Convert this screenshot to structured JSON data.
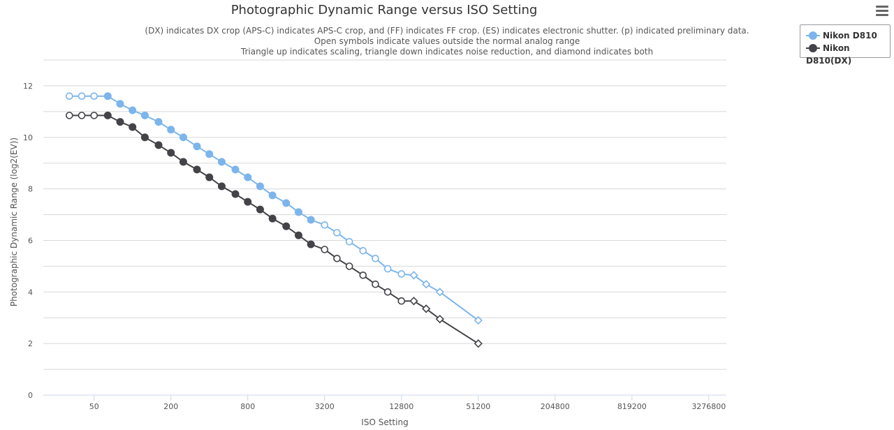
{
  "title": "Photographic Dynamic Range versus ISO Setting",
  "subtitle_lines": [
    "(DX) indicates DX crop (APS-C) indicates APS-C crop, and (FF) indicates FF crop. (ES) indicates electronic shutter. (p) indicated preliminary data.",
    "Open symbols indicate values outside the normal analog range",
    "Triangle up indicates scaling, triangle down indicates noise reduction, and diamond indicates both"
  ],
  "menu_icon": "hamburger-menu-icon",
  "colors": {
    "series1": "#7cb5ec",
    "series2": "#434348",
    "grid": "#d8d8d8",
    "axis_text": "#555555"
  },
  "legend": [
    {
      "label": "Nikon D810",
      "color": "#7cb5ec"
    },
    {
      "label": "Nikon D810(DX)",
      "color": "#434348"
    }
  ],
  "chart_data": {
    "type": "line",
    "xlabel": "ISO Setting",
    "ylabel": "Photographic Dynamic Range (log2(EV))",
    "x_scale": "log2",
    "xlim": [
      20,
      4500000
    ],
    "ylim": [
      0,
      13
    ],
    "x_tick_labels": [
      "50",
      "200",
      "800",
      "3200",
      "12800",
      "51200",
      "204800",
      "819200",
      "3276800"
    ],
    "y_tick_labels": [
      "0",
      "2",
      "4",
      "6",
      "8",
      "10",
      "12"
    ],
    "grid": true,
    "legend_position": "top-right",
    "series": [
      {
        "name": "Nikon D810",
        "points": [
          {
            "x": 32,
            "y": 11.6,
            "marker": "open-circle"
          },
          {
            "x": 40,
            "y": 11.6,
            "marker": "open-circle"
          },
          {
            "x": 50,
            "y": 11.6,
            "marker": "open-circle"
          },
          {
            "x": 64,
            "y": 11.6,
            "marker": "circle"
          },
          {
            "x": 80,
            "y": 11.3,
            "marker": "circle"
          },
          {
            "x": 100,
            "y": 11.05,
            "marker": "circle"
          },
          {
            "x": 125,
            "y": 10.85,
            "marker": "circle"
          },
          {
            "x": 160,
            "y": 10.6,
            "marker": "circle"
          },
          {
            "x": 200,
            "y": 10.3,
            "marker": "circle"
          },
          {
            "x": 250,
            "y": 10.0,
            "marker": "circle"
          },
          {
            "x": 320,
            "y": 9.65,
            "marker": "circle"
          },
          {
            "x": 400,
            "y": 9.35,
            "marker": "circle"
          },
          {
            "x": 500,
            "y": 9.05,
            "marker": "circle"
          },
          {
            "x": 640,
            "y": 8.75,
            "marker": "circle"
          },
          {
            "x": 800,
            "y": 8.45,
            "marker": "circle"
          },
          {
            "x": 1000,
            "y": 8.1,
            "marker": "circle"
          },
          {
            "x": 1250,
            "y": 7.75,
            "marker": "circle"
          },
          {
            "x": 1600,
            "y": 7.45,
            "marker": "circle"
          },
          {
            "x": 2000,
            "y": 7.1,
            "marker": "circle"
          },
          {
            "x": 2500,
            "y": 6.8,
            "marker": "circle"
          },
          {
            "x": 3200,
            "y": 6.6,
            "marker": "open-circle"
          },
          {
            "x": 4000,
            "y": 6.3,
            "marker": "open-circle"
          },
          {
            "x": 5000,
            "y": 5.95,
            "marker": "open-circle"
          },
          {
            "x": 6400,
            "y": 5.6,
            "marker": "open-circle"
          },
          {
            "x": 8000,
            "y": 5.3,
            "marker": "open-circle"
          },
          {
            "x": 10000,
            "y": 4.9,
            "marker": "open-circle"
          },
          {
            "x": 12800,
            "y": 4.7,
            "marker": "open-circle"
          },
          {
            "x": 16000,
            "y": 4.65,
            "marker": "open-diamond"
          },
          {
            "x": 20000,
            "y": 4.3,
            "marker": "open-diamond"
          },
          {
            "x": 25600,
            "y": 4.0,
            "marker": "open-diamond"
          },
          {
            "x": 51200,
            "y": 2.9,
            "marker": "open-diamond"
          }
        ]
      },
      {
        "name": "Nikon D810(DX)",
        "points": [
          {
            "x": 32,
            "y": 10.85,
            "marker": "open-circle"
          },
          {
            "x": 40,
            "y": 10.85,
            "marker": "open-circle"
          },
          {
            "x": 50,
            "y": 10.85,
            "marker": "open-circle"
          },
          {
            "x": 64,
            "y": 10.85,
            "marker": "circle"
          },
          {
            "x": 80,
            "y": 10.6,
            "marker": "circle"
          },
          {
            "x": 100,
            "y": 10.4,
            "marker": "circle"
          },
          {
            "x": 125,
            "y": 10.0,
            "marker": "circle"
          },
          {
            "x": 160,
            "y": 9.7,
            "marker": "circle"
          },
          {
            "x": 200,
            "y": 9.4,
            "marker": "circle"
          },
          {
            "x": 250,
            "y": 9.05,
            "marker": "circle"
          },
          {
            "x": 320,
            "y": 8.75,
            "marker": "circle"
          },
          {
            "x": 400,
            "y": 8.45,
            "marker": "circle"
          },
          {
            "x": 500,
            "y": 8.1,
            "marker": "circle"
          },
          {
            "x": 640,
            "y": 7.8,
            "marker": "circle"
          },
          {
            "x": 800,
            "y": 7.5,
            "marker": "circle"
          },
          {
            "x": 1000,
            "y": 7.2,
            "marker": "circle"
          },
          {
            "x": 1250,
            "y": 6.85,
            "marker": "circle"
          },
          {
            "x": 1600,
            "y": 6.55,
            "marker": "circle"
          },
          {
            "x": 2000,
            "y": 6.2,
            "marker": "circle"
          },
          {
            "x": 2500,
            "y": 5.85,
            "marker": "circle"
          },
          {
            "x": 3200,
            "y": 5.65,
            "marker": "open-circle"
          },
          {
            "x": 4000,
            "y": 5.3,
            "marker": "open-circle"
          },
          {
            "x": 5000,
            "y": 5.0,
            "marker": "open-circle"
          },
          {
            "x": 6400,
            "y": 4.65,
            "marker": "open-circle"
          },
          {
            "x": 8000,
            "y": 4.3,
            "marker": "open-circle"
          },
          {
            "x": 10000,
            "y": 4.0,
            "marker": "open-circle"
          },
          {
            "x": 12800,
            "y": 3.65,
            "marker": "open-circle"
          },
          {
            "x": 16000,
            "y": 3.65,
            "marker": "open-diamond"
          },
          {
            "x": 20000,
            "y": 3.35,
            "marker": "open-diamond"
          },
          {
            "x": 25600,
            "y": 2.95,
            "marker": "open-diamond"
          },
          {
            "x": 51200,
            "y": 2.0,
            "marker": "open-diamond"
          }
        ]
      }
    ]
  }
}
